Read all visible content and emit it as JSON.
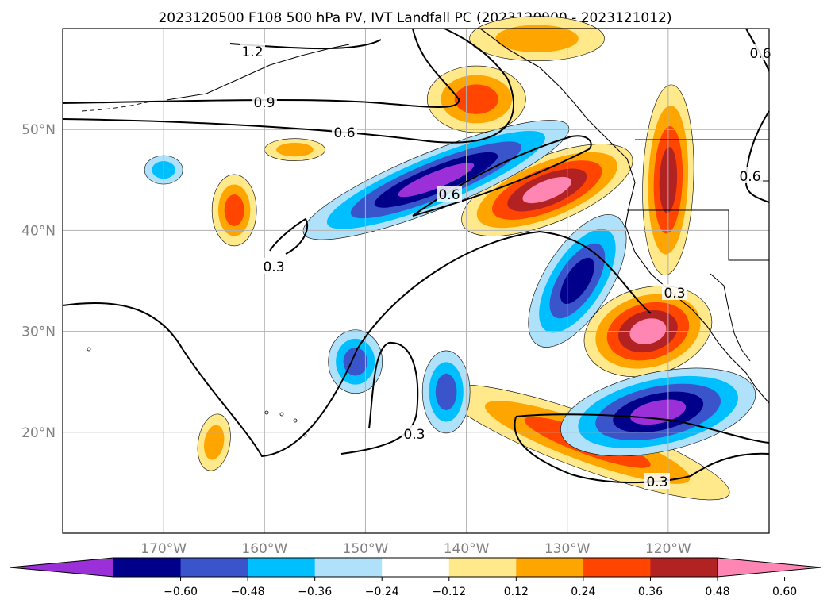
{
  "chart_data": {
    "type": "heatmap",
    "title": "2023120500 F108 500 hPa PV, IVT Landfall PC (2023120900 - 2023121012)",
    "map_extent": {
      "lon": [
        -180,
        -110
      ],
      "lat": [
        10,
        60
      ]
    },
    "grid": true,
    "lat_ticks": [
      {
        "value": 50,
        "label": "50°N"
      },
      {
        "value": 40,
        "label": "40°N"
      },
      {
        "value": 30,
        "label": "30°N"
      },
      {
        "value": 20,
        "label": "20°N"
      }
    ],
    "lon_ticks": [
      {
        "value": -170,
        "label": "170°W"
      },
      {
        "value": -160,
        "label": "160°W"
      },
      {
        "value": -150,
        "label": "150°W"
      },
      {
        "value": -140,
        "label": "140°W"
      },
      {
        "value": -130,
        "label": "130°W"
      },
      {
        "value": -120,
        "label": "120°W"
      }
    ],
    "colorbar": {
      "extend": "both",
      "bins": [
        {
          "color": "#9b30d8"
        },
        {
          "color": "#00008b"
        },
        {
          "color": "#3a55cc"
        },
        {
          "color": "#00bfff"
        },
        {
          "color": "#afe2fa"
        },
        {
          "color": "#ffffff"
        },
        {
          "color": "#ffe98a"
        },
        {
          "color": "#ffa500"
        },
        {
          "color": "#ff4500"
        },
        {
          "color": "#b22222"
        },
        {
          "color": "#ff85b3"
        }
      ],
      "tick_values": [
        -0.6,
        -0.48,
        -0.36,
        -0.24,
        -0.12,
        0.12,
        0.24,
        0.36,
        0.48,
        0.6
      ],
      "tick_labels": [
        "−0.60",
        "−0.48",
        "−0.36",
        "−0.24",
        "−0.12",
        "0.12",
        "0.24",
        "0.36",
        "0.48",
        "0.60"
      ]
    },
    "filled_anomalies": [
      {
        "name": "pos-gulf-alaska",
        "lon": -139,
        "lat": 53,
        "peak": 0.4
      },
      {
        "name": "pos-ne-pacific-top",
        "lon": -133,
        "lat": 59,
        "peak": 0.3
      },
      {
        "name": "pos-jet-core",
        "lon": -132,
        "lat": 44,
        "peak": 0.62
      },
      {
        "name": "pos-pacific-nw-band",
        "lon": -120,
        "lat": 45,
        "peak": 0.5
      },
      {
        "name": "pos-socal-offshore",
        "lon": -122,
        "lat": 30,
        "peak": 0.62
      },
      {
        "name": "pos-subtropical-arc",
        "lon": -128,
        "lat": 19,
        "peak": 0.45
      },
      {
        "name": "neg-mid-jet",
        "lon": -143,
        "lat": 45,
        "peak": -0.62
      },
      {
        "name": "neg-offshore-ca",
        "lon": -129,
        "lat": 35,
        "peak": -0.5
      },
      {
        "name": "neg-subtropical",
        "lon": -121,
        "lat": 22,
        "peak": -0.62
      },
      {
        "name": "neg-central-subtrop",
        "lon": -142,
        "lat": 24,
        "peak": -0.36
      },
      {
        "name": "neg-small-west",
        "lon": -151,
        "lat": 27,
        "peak": -0.36
      },
      {
        "name": "pos-small-west",
        "lon": -163,
        "lat": 42,
        "peak": 0.4
      },
      {
        "name": "pos-small-sw",
        "lon": -165,
        "lat": 19,
        "peak": 0.28
      },
      {
        "name": "neg-small-far-west",
        "lon": -170,
        "lat": 46,
        "peak": -0.3
      },
      {
        "name": "pos-small-nw",
        "lon": -157,
        "lat": 48,
        "peak": 0.28
      }
    ],
    "pv_contours": [
      {
        "label": "1.2"
      },
      {
        "label": "0.9"
      },
      {
        "label": "0.6"
      },
      {
        "label": "0.6"
      },
      {
        "label": "0.6"
      },
      {
        "label": "0.6"
      },
      {
        "label": "0.3"
      },
      {
        "label": "0.3"
      },
      {
        "label": "0.3"
      },
      {
        "label": "0.3"
      }
    ]
  }
}
